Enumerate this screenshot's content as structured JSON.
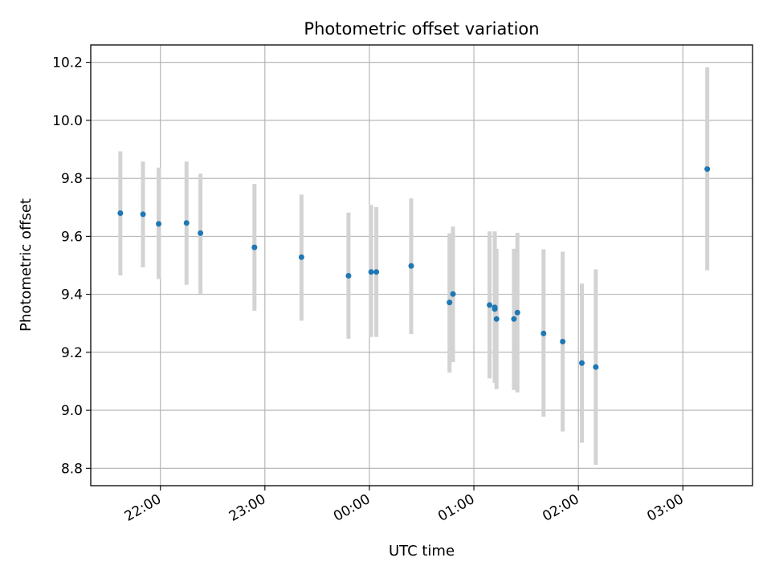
{
  "chart_data": {
    "type": "scatter",
    "title": "Photometric offset variation",
    "xlabel": "UTC time",
    "ylabel": "Photometric offset",
    "x_unit": "UTC time (HH:MM)",
    "xlim": [
      "21:20",
      "03:40"
    ],
    "ylim": [
      8.74,
      10.26
    ],
    "x_ticks": [
      "22:00",
      "23:00",
      "00:00",
      "01:00",
      "02:00",
      "03:00"
    ],
    "y_ticks": [
      "8.8",
      "9.0",
      "9.2",
      "9.4",
      "9.6",
      "9.8",
      "10.0",
      "10.2"
    ],
    "grid": true,
    "series": [
      {
        "marker_color": "#1f77b4",
        "errorbar_color": "#d3d3d3",
        "points": [
          {
            "x": "21:37",
            "y": 9.68,
            "yerr_low": 9.465,
            "yerr_high": 9.893
          },
          {
            "x": "21:50",
            "y": 9.676,
            "yerr_low": 9.493,
            "yerr_high": 9.858
          },
          {
            "x": "21:59",
            "y": 9.643,
            "yerr_low": 9.453,
            "yerr_high": 9.837
          },
          {
            "x": "22:15",
            "y": 9.646,
            "yerr_low": 9.433,
            "yerr_high": 9.858
          },
          {
            "x": "22:23",
            "y": 9.611,
            "yerr_low": 9.402,
            "yerr_high": 9.816
          },
          {
            "x": "22:54",
            "y": 9.562,
            "yerr_low": 9.343,
            "yerr_high": 9.781
          },
          {
            "x": "23:21",
            "y": 9.528,
            "yerr_low": 9.309,
            "yerr_high": 9.744
          },
          {
            "x": "23:48",
            "y": 9.464,
            "yerr_low": 9.247,
            "yerr_high": 9.682
          },
          {
            "x": "00:01",
            "y": 9.477,
            "yerr_low": 9.253,
            "yerr_high": 9.708
          },
          {
            "x": "00:04",
            "y": 9.477,
            "yerr_low": 9.253,
            "yerr_high": 9.701
          },
          {
            "x": "00:24",
            "y": 9.498,
            "yerr_low": 9.263,
            "yerr_high": 9.731
          },
          {
            "x": "00:46",
            "y": 9.372,
            "yerr_low": 9.13,
            "yerr_high": 9.61
          },
          {
            "x": "00:48",
            "y": 9.401,
            "yerr_low": 9.166,
            "yerr_high": 9.634
          },
          {
            "x": "01:09",
            "y": 9.363,
            "yerr_low": 9.11,
            "yerr_high": 9.617
          },
          {
            "x": "01:12",
            "y": 9.355,
            "yerr_low": 9.095,
            "yerr_high": 9.617
          },
          {
            "x": "01:12",
            "y": 9.349,
            "yerr_low": 9.095,
            "yerr_high": 9.612
          },
          {
            "x": "01:13",
            "y": 9.315,
            "yerr_low": 9.073,
            "yerr_high": 9.557
          },
          {
            "x": "01:23",
            "y": 9.315,
            "yerr_low": 9.07,
            "yerr_high": 9.557
          },
          {
            "x": "01:25",
            "y": 9.337,
            "yerr_low": 9.062,
            "yerr_high": 9.612
          },
          {
            "x": "01:40",
            "y": 9.265,
            "yerr_low": 8.978,
            "yerr_high": 9.555
          },
          {
            "x": "01:51",
            "y": 9.237,
            "yerr_low": 8.927,
            "yerr_high": 9.547
          },
          {
            "x": "02:02",
            "y": 9.163,
            "yerr_low": 8.888,
            "yerr_high": 9.437
          },
          {
            "x": "02:10",
            "y": 9.149,
            "yerr_low": 8.812,
            "yerr_high": 9.486
          },
          {
            "x": "03:14",
            "y": 9.832,
            "yerr_low": 9.483,
            "yerr_high": 10.183
          }
        ]
      }
    ]
  }
}
